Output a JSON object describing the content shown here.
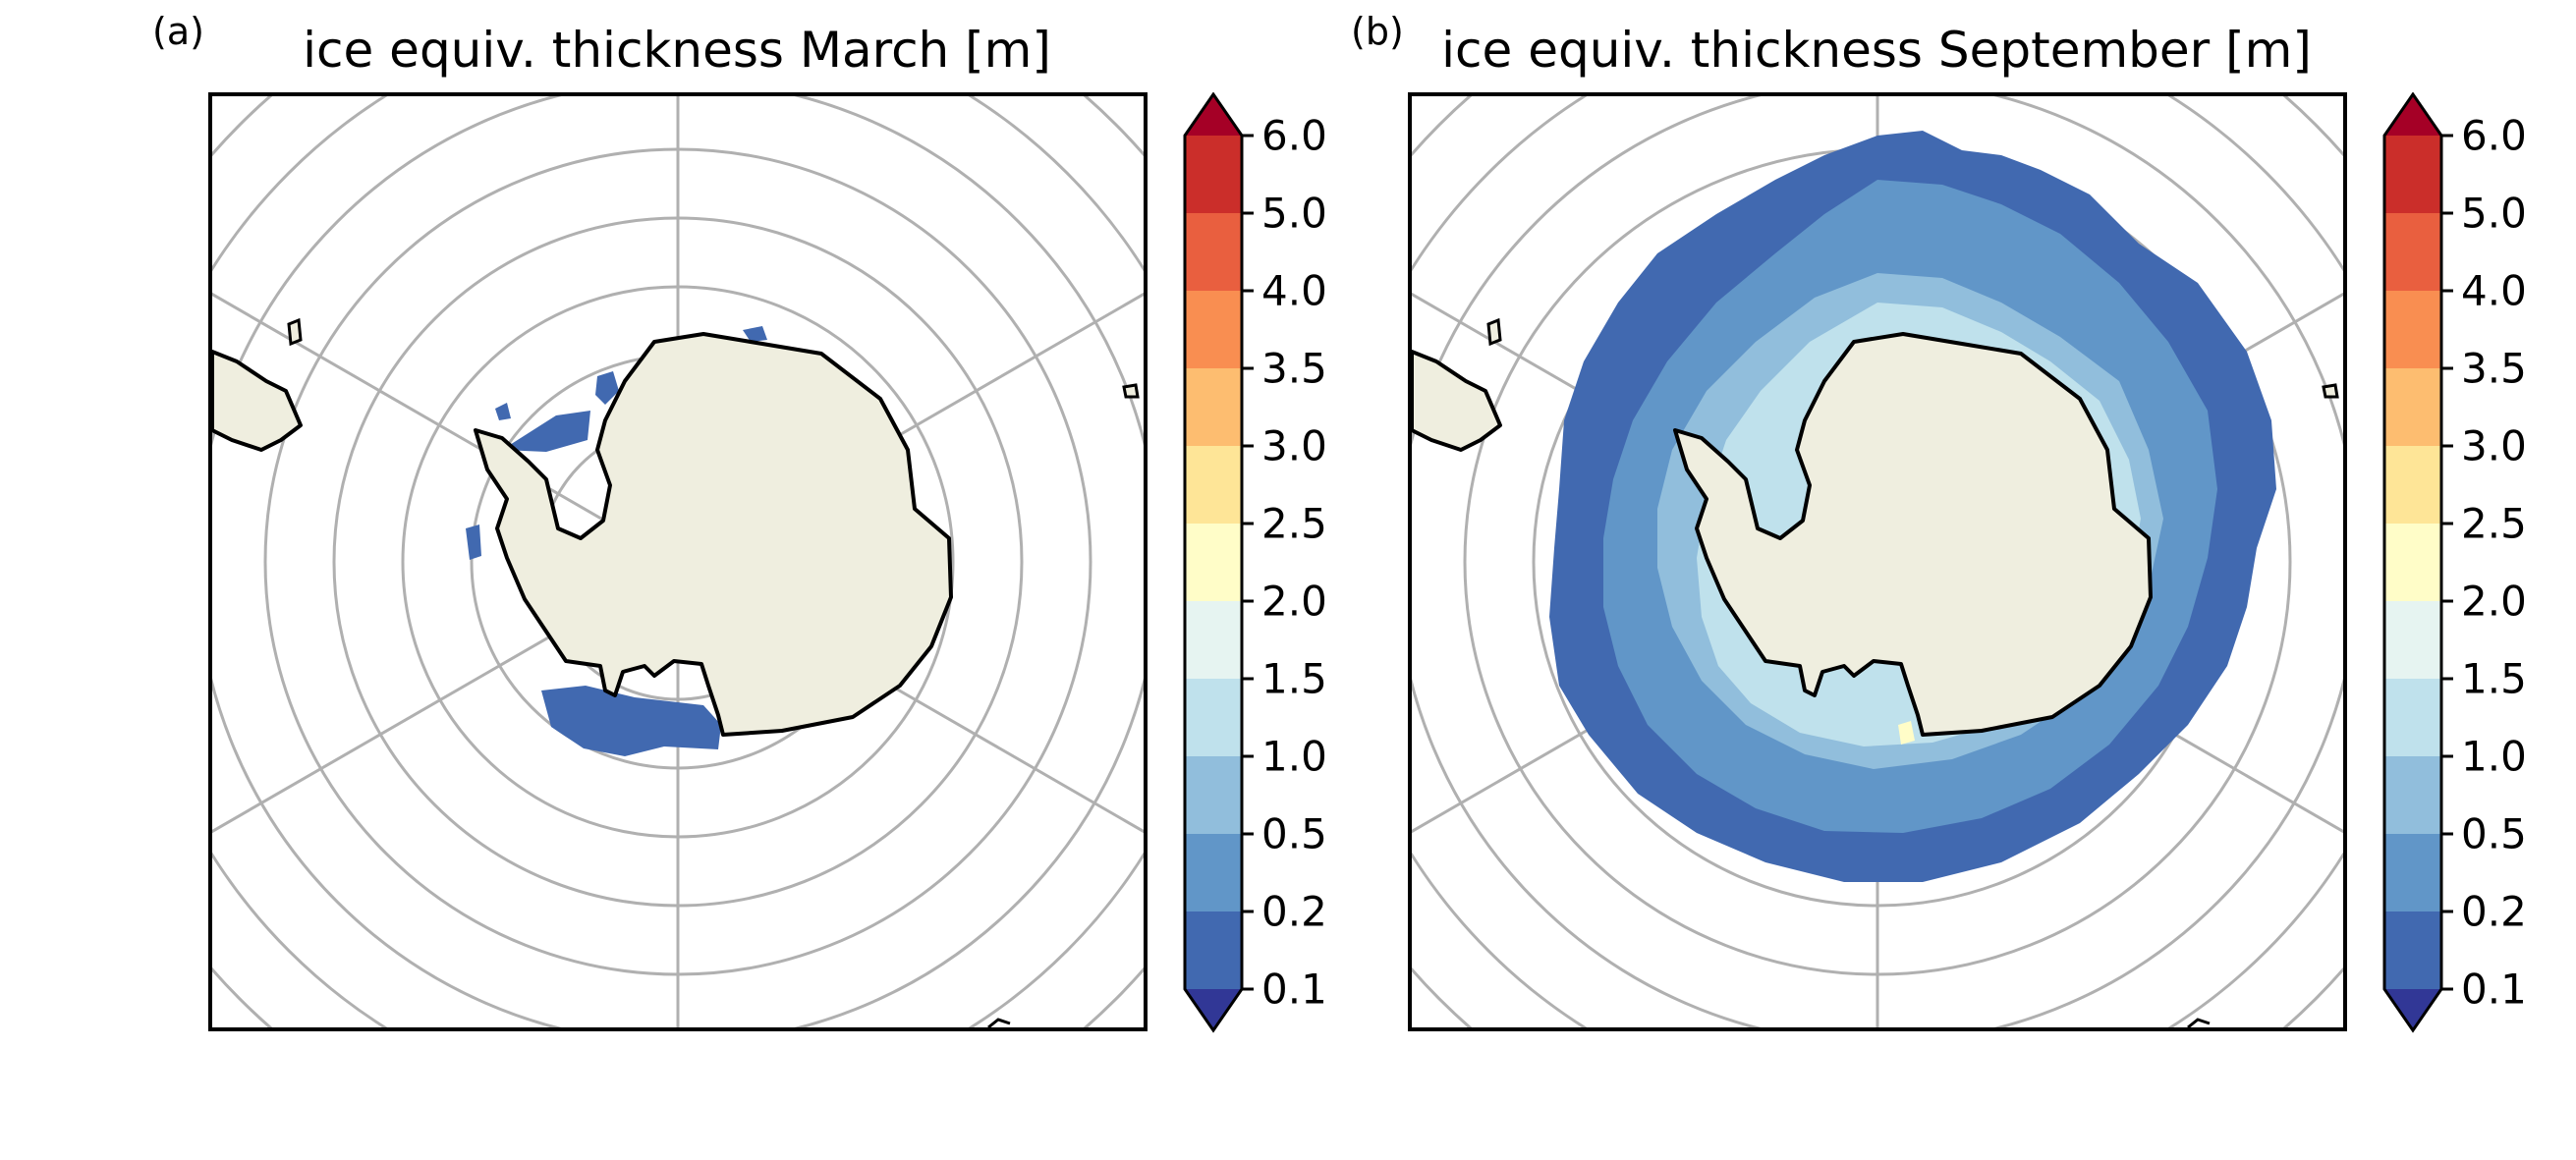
{
  "panels": [
    {
      "label": "(a)",
      "title": "ice equiv. thickness March [m]"
    },
    {
      "label": "(b)",
      "title": "ice equiv. thickness September [m]"
    }
  ],
  "colorbar": {
    "ticks": [
      "0.1",
      "0.2",
      "0.5",
      "1.0",
      "1.5",
      "2.0",
      "2.5",
      "3.0",
      "3.5",
      "4.0",
      "5.0",
      "6.0"
    ],
    "bands": [
      "#4169b0",
      "#6196c8",
      "#91bedc",
      "#bfe1ec",
      "#e6f4f1",
      "#fffdc8",
      "#fee597",
      "#fdbd70",
      "#f98e51",
      "#e95f3f",
      "#cb2e2a"
    ],
    "under_color": "#313796",
    "over_color": "#a50026",
    "extend": "both"
  },
  "colors": {
    "land": "#efeedf",
    "coastline": "#000000",
    "gridlines": "#b0b0b0"
  }
}
